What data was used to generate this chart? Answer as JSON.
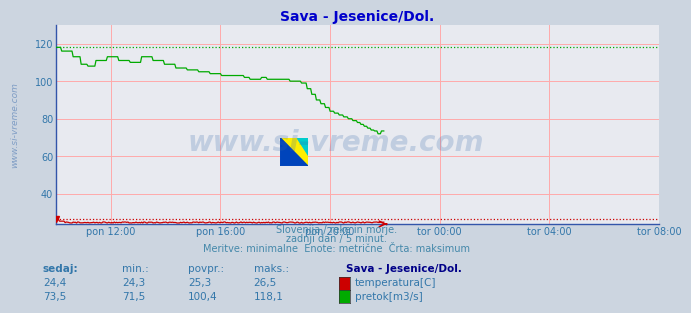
{
  "title": "Sava - Jesenice/Dol.",
  "title_color": "#0000cc",
  "bg_color": "#ccd5e0",
  "plot_bg_color": "#e8eaf0",
  "grid_color": "#ffaaaa",
  "tick_color": "#3377aa",
  "watermark": "www.si-vreme.com",
  "watermark_color": "#3366aa",
  "subtitle1": "Slovenija / reke in morje.",
  "subtitle2": "zadnji dan / 5 minut.",
  "subtitle3": "Meritve: minimalne  Enote: metrične  Črta: maksimum",
  "subtitle_color": "#4488aa",
  "x_tick_labels": [
    "pon 12:00",
    "pon 16:00",
    "pon 20:00",
    "tor 00:00",
    "tor 04:00",
    "tor 08:00"
  ],
  "x_tick_positions": [
    48,
    144,
    240,
    336,
    432,
    528
  ],
  "y_min": 24,
  "y_max": 130,
  "y_ticks": [
    40,
    60,
    80,
    100,
    120
  ],
  "temp_color": "#cc0000",
  "flow_color": "#00aa00",
  "legend_title": "Sava - Jesenice/Dol.",
  "legend_title_color": "#000088",
  "legend_items": [
    {
      "label": "temperatura[C]",
      "color": "#cc0000"
    },
    {
      "label": "pretok[m3/s]",
      "color": "#00aa00"
    }
  ],
  "table_headers": [
    "sedaj:",
    "min.:",
    "povpr.:",
    "maks.:"
  ],
  "table_data": [
    [
      "24,4",
      "24,3",
      "25,3",
      "26,5"
    ],
    [
      "73,5",
      "71,5",
      "100,4",
      "118,1"
    ]
  ],
  "table_color": "#3377aa",
  "flow_max": 118.1,
  "temp_max": 26.5
}
